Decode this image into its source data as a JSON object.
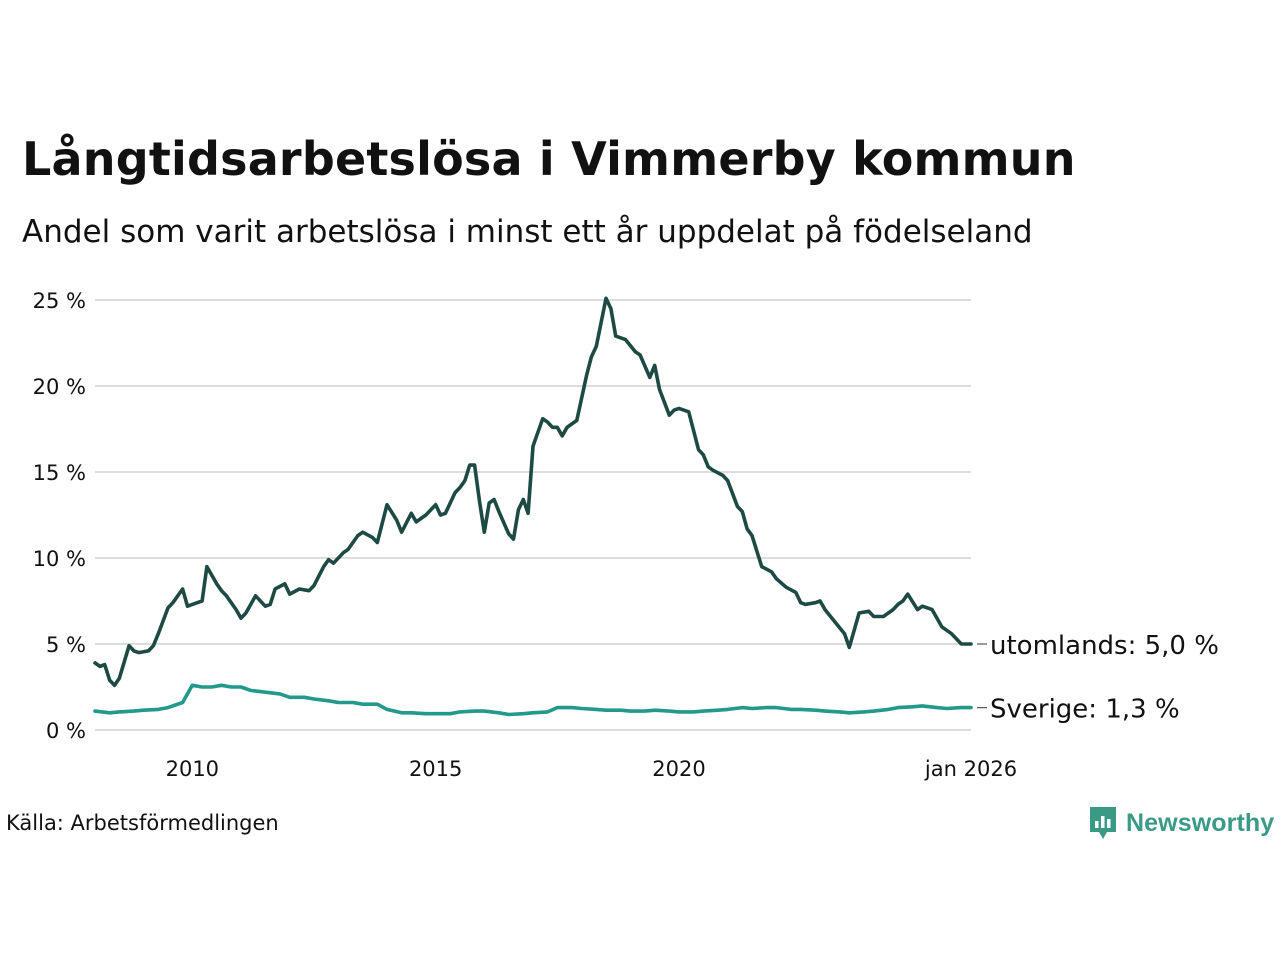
{
  "header": {
    "title": "Långtidsarbetslösa i Vimmerby kommun",
    "subtitle": "Andel som varit arbetslösa i minst ett år uppdelat på födelseland"
  },
  "footer": {
    "source": "Källa: Arbetsförmedlingen",
    "brand": "Newsworthy"
  },
  "colors": {
    "utomlands": "#1e4a44",
    "sverige": "#22998a",
    "grid": "#dddddd",
    "brand": "#3a9a86"
  },
  "chart_data": {
    "type": "line",
    "title": "Långtidsarbetslösa i Vimmerby kommun",
    "subtitle": "Andel som varit arbetslösa i minst ett år uppdelat på födelseland",
    "xlabel": "",
    "ylabel": "",
    "xlim": [
      2008.0,
      2026.0
    ],
    "ylim": [
      0,
      25
    ],
    "y_ticks": [
      {
        "value": 0,
        "label": "0 %"
      },
      {
        "value": 5,
        "label": "5 %"
      },
      {
        "value": 10,
        "label": "10 %"
      },
      {
        "value": 15,
        "label": "15 %"
      },
      {
        "value": 20,
        "label": "20 %"
      },
      {
        "value": 25,
        "label": "25 %"
      }
    ],
    "x_ticks": [
      {
        "value": 2010.0,
        "label": "2010"
      },
      {
        "value": 2015.0,
        "label": "2015"
      },
      {
        "value": 2020.0,
        "label": "2020"
      },
      {
        "value": 2026.0,
        "label": "jan 2026"
      }
    ],
    "grid": true,
    "series": [
      {
        "name": "utomlands",
        "end_label": "utomlands: 5,0 %",
        "x": [
          2008.0,
          2008.1,
          2008.2,
          2008.3,
          2008.4,
          2008.5,
          2008.7,
          2008.8,
          2008.9,
          2009.1,
          2009.2,
          2009.3,
          2009.5,
          2009.6,
          2009.8,
          2009.9,
          2010.0,
          2010.1,
          2010.2,
          2010.3,
          2010.5,
          2010.6,
          2010.7,
          2010.9,
          2011.0,
          2011.1,
          2011.3,
          2011.5,
          2011.6,
          2011.7,
          2011.9,
          2012.0,
          2012.2,
          2012.4,
          2012.5,
          2012.7,
          2012.8,
          2012.9,
          2013.1,
          2013.2,
          2013.4,
          2013.5,
          2013.7,
          2013.8,
          2014.0,
          2014.2,
          2014.3,
          2014.5,
          2014.6,
          2014.7,
          2014.8,
          2015.0,
          2015.1,
          2015.2,
          2015.4,
          2015.5,
          2015.6,
          2015.7,
          2015.8,
          2015.9,
          2016.0,
          2016.1,
          2016.2,
          2016.3,
          2016.5,
          2016.6,
          2016.7,
          2016.8,
          2016.9,
          2017.0,
          2017.2,
          2017.3,
          2017.4,
          2017.5,
          2017.6,
          2017.7,
          2017.9,
          2018.1,
          2018.2,
          2018.3,
          2018.5,
          2018.6,
          2018.7,
          2018.8,
          2018.9,
          2019.1,
          2019.2,
          2019.4,
          2019.5,
          2019.6,
          2019.8,
          2019.9,
          2020.0,
          2020.2,
          2020.4,
          2020.5,
          2020.6,
          2020.7,
          2020.9,
          2021.0,
          2021.2,
          2021.3,
          2021.4,
          2021.5,
          2021.7,
          2021.9,
          2022.0,
          2022.2,
          2022.4,
          2022.5,
          2022.6,
          2022.8,
          2022.9,
          2023.0,
          2023.2,
          2023.4,
          2023.5,
          2023.7,
          2023.9,
          2024.0,
          2024.2,
          2024.4,
          2024.5,
          2024.6,
          2024.7,
          2024.9,
          2025.0,
          2025.2,
          2025.4,
          2025.6,
          2025.8,
          2026.0
        ],
        "values": [
          3.9,
          3.7,
          3.8,
          2.9,
          2.6,
          3.0,
          4.9,
          4.6,
          4.5,
          4.6,
          4.9,
          5.6,
          7.1,
          7.4,
          8.2,
          7.2,
          7.3,
          7.4,
          7.5,
          9.5,
          8.5,
          8.1,
          7.8,
          7.0,
          6.5,
          6.8,
          7.8,
          7.2,
          7.3,
          8.2,
          8.5,
          7.9,
          8.2,
          8.1,
          8.4,
          9.5,
          9.9,
          9.7,
          10.3,
          10.5,
          11.3,
          11.5,
          11.2,
          10.9,
          13.1,
          12.2,
          11.5,
          12.6,
          12.1,
          12.3,
          12.5,
          13.1,
          12.5,
          12.6,
          13.8,
          14.1,
          14.5,
          15.4,
          15.4,
          13.3,
          11.5,
          13.2,
          13.4,
          12.7,
          11.4,
          11.1,
          12.8,
          13.4,
          12.6,
          16.5,
          18.1,
          17.9,
          17.6,
          17.6,
          17.1,
          17.6,
          18.0,
          20.6,
          21.7,
          22.3,
          25.1,
          24.5,
          22.9,
          22.8,
          22.7,
          22.0,
          21.8,
          20.5,
          21.2,
          19.8,
          18.3,
          18.6,
          18.7,
          18.5,
          16.3,
          16.0,
          15.3,
          15.1,
          14.8,
          14.5,
          13.0,
          12.7,
          11.7,
          11.3,
          9.5,
          9.2,
          8.8,
          8.3,
          8.0,
          7.4,
          7.3,
          7.4,
          7.5,
          7.0,
          6.3,
          5.6,
          4.8,
          6.8,
          6.9,
          6.6,
          6.6,
          7.0,
          7.3,
          7.5,
          7.9,
          7.0,
          7.2,
          7.0,
          6.0,
          5.6,
          5.0,
          5.0
        ]
      },
      {
        "name": "Sverige",
        "end_label": "Sverige: 1,3 %",
        "x": [
          2008.0,
          2008.3,
          2008.5,
          2008.8,
          2009.0,
          2009.3,
          2009.5,
          2009.8,
          2010.0,
          2010.2,
          2010.4,
          2010.6,
          2010.8,
          2011.0,
          2011.2,
          2011.5,
          2011.8,
          2012.0,
          2012.3,
          2012.5,
          2012.8,
          2013.0,
          2013.3,
          2013.5,
          2013.8,
          2014.0,
          2014.3,
          2014.5,
          2014.8,
          2015.0,
          2015.3,
          2015.5,
          2015.8,
          2016.0,
          2016.3,
          2016.5,
          2016.8,
          2017.0,
          2017.3,
          2017.5,
          2017.8,
          2018.0,
          2018.3,
          2018.5,
          2018.8,
          2019.0,
          2019.3,
          2019.5,
          2019.8,
          2020.0,
          2020.3,
          2020.5,
          2020.8,
          2021.0,
          2021.3,
          2021.5,
          2021.8,
          2022.0,
          2022.3,
          2022.5,
          2022.8,
          2023.0,
          2023.3,
          2023.5,
          2023.8,
          2024.0,
          2024.3,
          2024.5,
          2024.8,
          2025.0,
          2025.3,
          2025.5,
          2025.8,
          2026.0
        ],
        "values": [
          1.1,
          1.0,
          1.05,
          1.1,
          1.15,
          1.2,
          1.3,
          1.6,
          2.6,
          2.5,
          2.5,
          2.6,
          2.5,
          2.5,
          2.3,
          2.2,
          2.1,
          1.9,
          1.9,
          1.8,
          1.7,
          1.6,
          1.6,
          1.5,
          1.5,
          1.2,
          1.0,
          1.0,
          0.95,
          0.95,
          0.95,
          1.05,
          1.1,
          1.1,
          1.0,
          0.9,
          0.95,
          1.0,
          1.05,
          1.3,
          1.3,
          1.25,
          1.2,
          1.15,
          1.15,
          1.1,
          1.1,
          1.15,
          1.1,
          1.05,
          1.05,
          1.1,
          1.15,
          1.2,
          1.3,
          1.25,
          1.3,
          1.3,
          1.2,
          1.2,
          1.15,
          1.1,
          1.05,
          1.0,
          1.05,
          1.1,
          1.2,
          1.3,
          1.35,
          1.4,
          1.3,
          1.25,
          1.3,
          1.3
        ]
      }
    ]
  }
}
